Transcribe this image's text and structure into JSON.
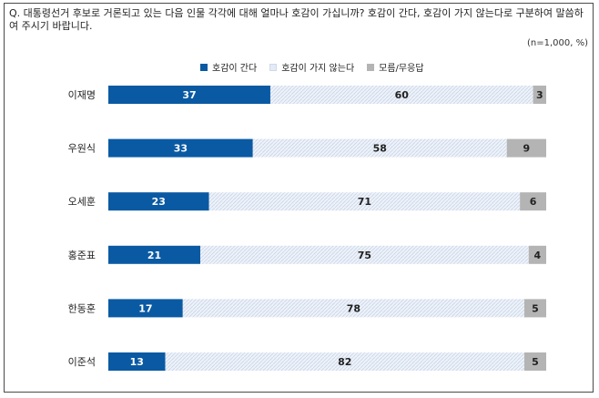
{
  "question": "Q. 대통령선거 후보로 거론되고 있는 다음 인물 각각에 대해 얼마나 호감이 가십니까? 호감이 간다, 호감이 가지 않는다로 구분하여 말씀하여 주시기 바랍니다.",
  "note": "(n=1,000, %)",
  "colors": {
    "positive": "#0a5aa3",
    "negative": "#e4ebf5",
    "unknown": "#b4b4b4"
  },
  "chart_data": {
    "type": "bar",
    "orientation": "horizontal",
    "stacked": true,
    "categories": [
      "이재명",
      "우원식",
      "오세훈",
      "홍준표",
      "한동훈",
      "이준석"
    ],
    "series": [
      {
        "name": "호감이 간다",
        "values": [
          37,
          33,
          23,
          21,
          17,
          13
        ]
      },
      {
        "name": "호감이 가지 않는다",
        "values": [
          60,
          58,
          71,
          75,
          78,
          82
        ]
      },
      {
        "name": "모름/무응답",
        "values": [
          3,
          9,
          6,
          4,
          5,
          5
        ]
      }
    ],
    "xlim": [
      0,
      100
    ],
    "legend_position": "top",
    "grid": false
  }
}
